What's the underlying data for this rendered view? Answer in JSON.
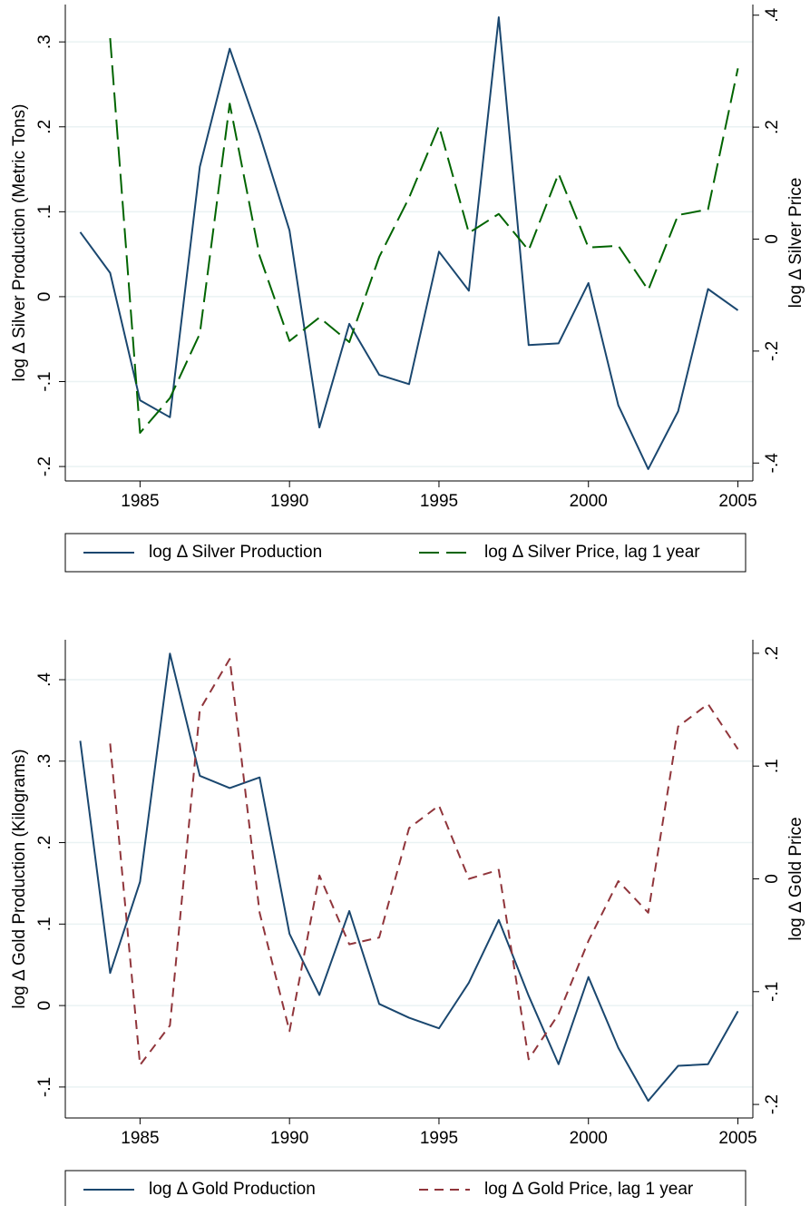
{
  "chart_data": [
    {
      "type": "line",
      "y_title": "log Δ Silver Production (Metric Tons)",
      "y2_title": "log Δ Silver Price",
      "x": [
        1983,
        1984,
        1985,
        1986,
        1987,
        1988,
        1989,
        1990,
        1991,
        1992,
        1993,
        1994,
        1995,
        1996,
        1997,
        1998,
        1999,
        2000,
        2001,
        2002,
        2003,
        2004,
        2005
      ],
      "series": [
        {
          "name": "log Δ Silver Production",
          "color": "#1a476f",
          "line_style": "solid",
          "values": [
            0.076,
            0.028,
            -0.122,
            -0.142,
            0.153,
            0.292,
            0.191,
            0.078,
            -0.154,
            -0.032,
            -0.092,
            -0.103,
            0.053,
            0.007,
            0.329,
            -0.057,
            -0.055,
            0.016,
            -0.128,
            -0.203,
            -0.135,
            0.009,
            -0.016
          ]
        },
        {
          "name": "log Δ Silver Price, lag 1 year",
          "color": "#006400",
          "line_style": "long-dash",
          "axis": "y2",
          "values": [
            null,
            0.359,
            -0.346,
            -0.284,
            -0.169,
            0.242,
            -0.03,
            -0.182,
            -0.14,
            -0.184,
            -0.032,
            0.074,
            0.202,
            0.011,
            0.045,
            -0.02,
            0.117,
            -0.015,
            -0.012,
            -0.091,
            0.043,
            0.053,
            0.305
          ]
        }
      ],
      "xlim": [
        1982.5,
        2005.5
      ],
      "xticks": [
        1985,
        1990,
        1995,
        2000,
        2005
      ],
      "ylim": [
        -0.217,
        0.344
      ],
      "yticks": [
        {
          "value": -0.2,
          "label": "-.2"
        },
        {
          "value": -0.1,
          "label": "-.1"
        },
        0,
        {
          "value": 0.1,
          "label": ".1"
        },
        {
          "value": 0.2,
          "label": ".2"
        },
        {
          "value": 0.3,
          "label": ".3"
        }
      ],
      "y2lim": [
        -0.432,
        0.419
      ],
      "y2ticks": [
        {
          "value": -0.4,
          "label": "-.4"
        },
        {
          "value": -0.2,
          "label": "-.2"
        },
        0,
        {
          "value": 0.2,
          "label": ".2"
        },
        {
          "value": 0.4,
          "label": ".4"
        }
      ],
      "grid": true
    },
    {
      "type": "line",
      "y_title": "log Δ Gold Production (Kilograms)",
      "y2_title": "log Δ Gold Price",
      "x": [
        1983,
        1984,
        1985,
        1986,
        1987,
        1988,
        1989,
        1990,
        1991,
        1992,
        1993,
        1994,
        1995,
        1996,
        1997,
        1998,
        1999,
        2000,
        2001,
        2002,
        2003,
        2004,
        2005
      ],
      "series": [
        {
          "name": "log Δ Gold Production",
          "color": "#1a476f",
          "line_style": "solid",
          "values": [
            0.325,
            0.04,
            0.152,
            0.432,
            0.282,
            0.267,
            0.28,
            0.088,
            0.013,
            0.116,
            0.002,
            -0.015,
            -0.028,
            0.028,
            0.105,
            0.012,
            -0.072,
            0.035,
            -0.052,
            -0.117,
            -0.074,
            -0.072,
            -0.007
          ]
        },
        {
          "name": "log Δ Gold Price, lag 1 year",
          "color": "#90353b",
          "line_style": "short-dash",
          "axis": "y2",
          "values": [
            null,
            0.12,
            -0.165,
            -0.13,
            0.15,
            0.195,
            -0.03,
            -0.135,
            0.003,
            -0.058,
            -0.052,
            0.045,
            0.065,
            0.0,
            0.008,
            -0.16,
            -0.12,
            -0.055,
            -0.002,
            -0.03,
            0.135,
            0.155,
            0.115
          ]
        }
      ],
      "xlim": [
        1982.5,
        2005.5
      ],
      "xticks": [
        1985,
        1990,
        1995,
        2000,
        2005
      ],
      "ylim": [
        -0.138,
        0.449
      ],
      "yticks": [
        {
          "value": -0.1,
          "label": "-.1"
        },
        0,
        {
          "value": 0.1,
          "label": ".1"
        },
        {
          "value": 0.2,
          "label": ".2"
        },
        {
          "value": 0.3,
          "label": ".3"
        },
        {
          "value": 0.4,
          "label": ".4"
        }
      ],
      "y2lim": [
        -0.212,
        0.212
      ],
      "y2ticks": [
        {
          "value": -0.2,
          "label": "-.2"
        },
        {
          "value": -0.1,
          "label": "-.1"
        },
        0,
        {
          "value": 0.1,
          "label": ".1"
        },
        {
          "value": 0.2,
          "label": ".2"
        }
      ],
      "grid": true
    }
  ]
}
